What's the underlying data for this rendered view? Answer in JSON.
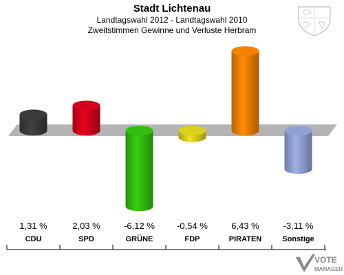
{
  "header": {
    "title": "Stadt Lichtenau",
    "subtitle": "Landtagswahl 2012 - Landtagswahl 2010",
    "description": "Zweitstimmen Gewinne und Verluste Herbram"
  },
  "chart_data": {
    "type": "bar",
    "title": "Stadt Lichtenau",
    "subtitle": "Landtagswahl 2012 - Landtagswahl 2010",
    "categories": [
      "CDU",
      "SPD",
      "GRÜNE",
      "FDP",
      "PIRATEN",
      "Sonstige"
    ],
    "values": [
      1.31,
      2.03,
      -6.12,
      -0.54,
      6.43,
      -3.11
    ],
    "value_labels": [
      "1,31 %",
      "2,03 %",
      "-6,12 %",
      "-0,54 %",
      "6,43 %",
      "-3,11 %"
    ],
    "colors": [
      "#3a3a3a",
      "#d0021b",
      "#2fbb0e",
      "#d8cc1a",
      "#f07f00",
      "#8f9ed0"
    ],
    "ylim": [
      -6.5,
      6.5
    ],
    "grid": false
  },
  "branding": {
    "watermark_line1": "VOTE",
    "watermark_line2": "MANAGER"
  }
}
